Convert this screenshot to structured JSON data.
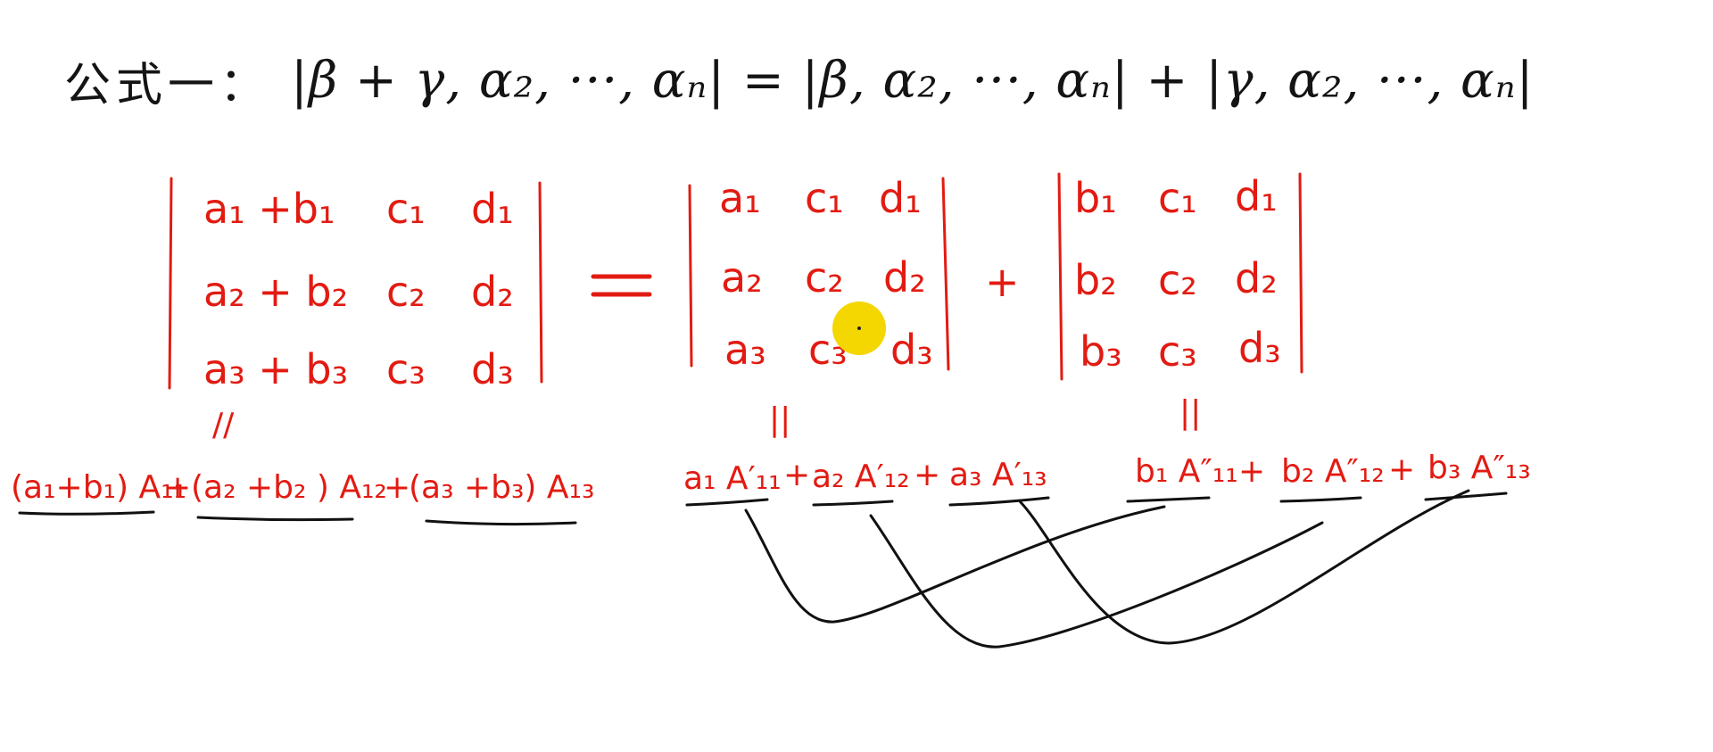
{
  "formula": {
    "label": "公式一：",
    "expression": "|β + γ, α₂, ···, αₙ| = |β, α₂, ···, αₙ| + |γ, α₂, ···, αₙ|"
  },
  "det_left": {
    "rows": [
      [
        "a₁ +b₁",
        "c₁",
        "d₁"
      ],
      [
        "a₂ + b₂",
        "c₂",
        "d₂"
      ],
      [
        "a₃ + b₃",
        "c₃",
        "d₃"
      ]
    ]
  },
  "equals_sign": "=",
  "det_middle": {
    "rows": [
      [
        "a₁",
        "c₁",
        "d₁"
      ],
      [
        "a₂",
        "c₂",
        "d₂"
      ],
      [
        "a₃",
        "c₃",
        "d₃"
      ]
    ]
  },
  "plus_sign": "+",
  "det_right": {
    "rows": [
      [
        "b₁",
        "c₁",
        "d₁"
      ],
      [
        "b₂",
        "c₂",
        "d₂"
      ],
      [
        "b₃",
        "c₃",
        "d₃"
      ]
    ]
  },
  "eq_marks": {
    "left": "//",
    "middle": "||",
    "right": "||"
  },
  "expansions": {
    "left": [
      "(a₁+b₁) A₁₁",
      "+",
      "(a₂ +b₂ ) A₁₂",
      "+",
      "(a₃ +b₃) A₁₃"
    ],
    "middle": [
      "a₁ A′₁₁",
      "+",
      "a₂ A′₁₂",
      "+",
      "a₃ A′₁₃"
    ],
    "right": [
      "b₁ A″₁₁",
      "+",
      "b₂ A″₁₂",
      "+",
      "b₃ A″₁₃"
    ]
  },
  "colors": {
    "handwriting": "#e21b12",
    "ink": "#111111",
    "cursor": "#f4d600"
  }
}
